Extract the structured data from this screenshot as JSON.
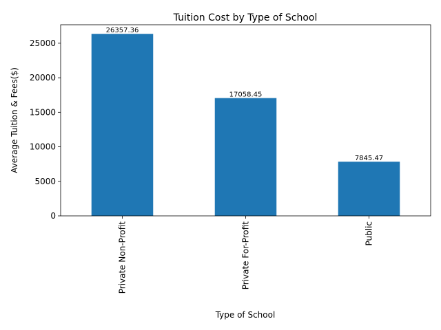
{
  "chart_data": {
    "type": "bar",
    "title": "Tuition Cost by Type of School",
    "xlabel": "Type of School",
    "ylabel": "Average Tuition & Fees($)",
    "categories": [
      "Private Non-Profit",
      "Private For-Profit",
      "Public"
    ],
    "values": [
      26357.36,
      17058.45,
      7845.47
    ],
    "value_labels": [
      "26357.36",
      "17058.45",
      "7845.47"
    ],
    "ylim": [
      0,
      27675
    ],
    "yticks": [
      0,
      5000,
      10000,
      15000,
      20000,
      25000
    ],
    "ytick_labels": [
      "0",
      "5000",
      "10000",
      "15000",
      "20000",
      "25000"
    ],
    "bar_color": "#1f77b4",
    "grid": false,
    "legend": "none"
  }
}
